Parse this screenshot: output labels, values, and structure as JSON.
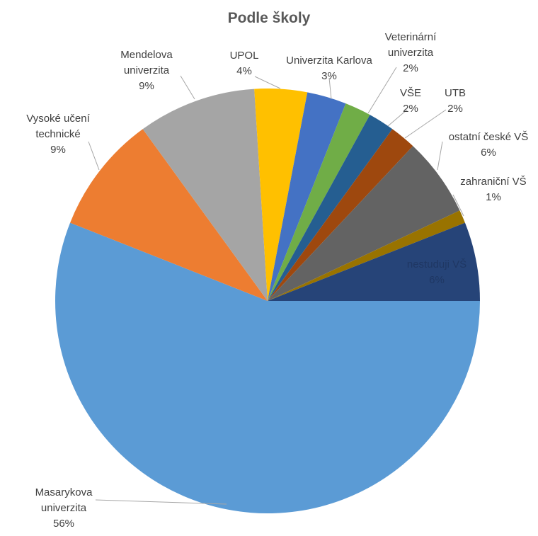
{
  "chart_data": {
    "type": "pie",
    "title": "Podle školy",
    "categories": [
      "Masarykova univerzita",
      "Vysoké učení technické",
      "Mendelova univerzita",
      "UPOL",
      "Univerzita Karlova",
      "Veterinární univerzita",
      "VŠE",
      "UTB",
      "ostatní české VŠ",
      "zahraniční VŠ",
      "nestuduji VŠ"
    ],
    "values": [
      56,
      9,
      9,
      4,
      3,
      2,
      2,
      2,
      6,
      1,
      6
    ],
    "value_labels": [
      "56%",
      "9%",
      "9%",
      "4%",
      "3%",
      "2%",
      "2%",
      "2%",
      "6%",
      "1%",
      "6%"
    ],
    "colors": [
      "#5b9bd5",
      "#ed7d31",
      "#a5a5a5",
      "#ffc000",
      "#4472c4",
      "#70ad47",
      "#255e91",
      "#9e480e",
      "#636363",
      "#997300",
      "#264478"
    ]
  }
}
